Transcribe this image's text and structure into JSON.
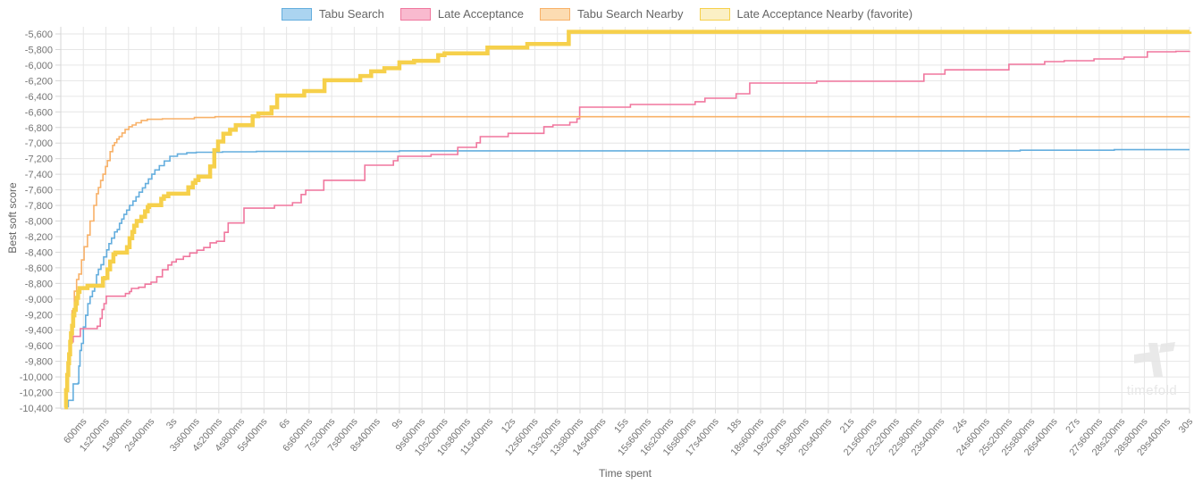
{
  "watermark": {
    "text": "timefold"
  },
  "axes": {
    "y": {
      "title": "Best soft score",
      "tick_values": [
        -5600,
        -5800,
        -6000,
        -6200,
        -6400,
        -6600,
        -6800,
        -7000,
        -7200,
        -7400,
        -7600,
        -7800,
        -8000,
        -8200,
        -8400,
        -8600,
        -8800,
        -9000,
        -9200,
        -9400,
        -9600,
        -9800,
        -10000,
        -10200,
        -10400
      ],
      "tick_labels": [
        "-5,600",
        "-5,800",
        "-6,000",
        "-6,200",
        "-6,400",
        "-6,600",
        "-6,800",
        "-7,000",
        "-7,200",
        "-7,400",
        "-7,600",
        "-7,800",
        "-8,000",
        "-8,200",
        "-8,400",
        "-8,600",
        "-8,800",
        "-9,000",
        "-9,200",
        "-9,400",
        "-9,600",
        "-9,800",
        "-10,000",
        "-10,200",
        "-10,400"
      ]
    },
    "x": {
      "title": "Time spent",
      "tick_seconds": [
        0.6,
        1.2,
        1.8,
        2.4,
        3,
        3.6,
        4.2,
        4.8,
        5.4,
        6,
        6.6,
        7.2,
        7.8,
        8.4,
        9,
        9.6,
        10.2,
        10.8,
        11.4,
        12,
        12.6,
        13.2,
        13.8,
        14.4,
        15,
        15.6,
        16.2,
        16.8,
        17.4,
        18,
        18.6,
        19.2,
        19.8,
        20.4,
        21,
        21.6,
        22.2,
        22.8,
        23.4,
        24,
        24.6,
        25.2,
        25.8,
        26.4,
        27,
        27.6,
        28.2,
        28.8,
        29.4,
        30
      ],
      "tick_labels": [
        "600ms",
        "1s200ms",
        "1s800ms",
        "2s400ms",
        "3s",
        "3s600ms",
        "4s200ms",
        "4s800ms",
        "5s400ms",
        "6s",
        "6s600ms",
        "7s200ms",
        "7s800ms",
        "8s400ms",
        "9s",
        "9s600ms",
        "10s200ms",
        "10s800ms",
        "11s400ms",
        "12s",
        "12s600ms",
        "13s200ms",
        "13s800ms",
        "14s400ms",
        "15s",
        "15s600ms",
        "16s200ms",
        "16s800ms",
        "17s400ms",
        "18s",
        "18s600ms",
        "19s200ms",
        "19s800ms",
        "20s400ms",
        "21s",
        "21s600ms",
        "22s200ms",
        "22s800ms",
        "23s400ms",
        "24s",
        "24s600ms",
        "25s200ms",
        "25s800ms",
        "26s400ms",
        "27s",
        "27s600ms",
        "28s200ms",
        "28s800ms",
        "29s400ms",
        "30s"
      ]
    }
  },
  "style": {
    "grid_color": "#e6e6e6",
    "axis_color": "#d6d6d6",
    "tick_text_color": "#757575",
    "watermark_color": "#e9e9e9"
  },
  "chart_data": {
    "type": "line",
    "subtype": "step-after",
    "title": "",
    "xlabel": "Time spent",
    "ylabel": "Best soft score",
    "x_unit": "seconds",
    "xlim": [
      0,
      30
    ],
    "ylim": [
      -10400,
      -5600
    ],
    "grid": true,
    "legend_position": "top-center",
    "series": [
      {
        "name": "Tabu Search",
        "color": "#64aede",
        "legend_fill": "#abd4f0",
        "line_width": 1.6,
        "favorite": false,
        "points": [
          [
            0.17,
            -10380
          ],
          [
            0.2,
            -10300
          ],
          [
            0.33,
            -10090
          ],
          [
            0.46,
            -10080
          ],
          [
            0.48,
            -9860
          ],
          [
            0.51,
            -9660
          ],
          [
            0.55,
            -9570
          ],
          [
            0.6,
            -9360
          ],
          [
            0.66,
            -9210
          ],
          [
            0.72,
            -9060
          ],
          [
            0.78,
            -8970
          ],
          [
            0.84,
            -8900
          ],
          [
            0.9,
            -8820
          ],
          [
            0.95,
            -8690
          ],
          [
            1.0,
            -8620
          ],
          [
            1.07,
            -8560
          ],
          [
            1.14,
            -8460
          ],
          [
            1.22,
            -8370
          ],
          [
            1.28,
            -8290
          ],
          [
            1.35,
            -8220
          ],
          [
            1.43,
            -8140
          ],
          [
            1.5,
            -8110
          ],
          [
            1.56,
            -8030
          ],
          [
            1.62,
            -7975
          ],
          [
            1.68,
            -7915
          ],
          [
            1.75,
            -7860
          ],
          [
            1.83,
            -7800
          ],
          [
            1.92,
            -7745
          ],
          [
            2.0,
            -7690
          ],
          [
            2.08,
            -7630
          ],
          [
            2.17,
            -7575
          ],
          [
            2.25,
            -7520
          ],
          [
            2.33,
            -7460
          ],
          [
            2.42,
            -7400
          ],
          [
            2.5,
            -7345
          ],
          [
            2.62,
            -7290
          ],
          [
            2.75,
            -7230
          ],
          [
            2.9,
            -7170
          ],
          [
            3.1,
            -7140
          ],
          [
            3.35,
            -7125
          ],
          [
            3.6,
            -7118
          ],
          [
            4.3,
            -7112
          ],
          [
            5.2,
            -7108
          ],
          [
            9.0,
            -7100
          ],
          [
            25.5,
            -7092
          ],
          [
            28.0,
            -7085
          ],
          [
            30,
            -7085
          ]
        ]
      },
      {
        "name": "Late Acceptance",
        "color": "#f0779e",
        "legend_fill": "#f9bacf",
        "line_width": 1.6,
        "favorite": false,
        "points": [
          [
            0.12,
            -10350
          ],
          [
            0.15,
            -10120
          ],
          [
            0.18,
            -9900
          ],
          [
            0.22,
            -9700
          ],
          [
            0.27,
            -9550
          ],
          [
            0.33,
            -9480
          ],
          [
            0.52,
            -9380
          ],
          [
            0.97,
            -9350
          ],
          [
            1.05,
            -9250
          ],
          [
            1.1,
            -9135
          ],
          [
            1.15,
            -9060
          ],
          [
            1.21,
            -8965
          ],
          [
            1.72,
            -8930
          ],
          [
            1.83,
            -8905
          ],
          [
            1.88,
            -8865
          ],
          [
            2.07,
            -8850
          ],
          [
            2.24,
            -8810
          ],
          [
            2.4,
            -8785
          ],
          [
            2.55,
            -8715
          ],
          [
            2.7,
            -8625
          ],
          [
            2.85,
            -8565
          ],
          [
            2.95,
            -8525
          ],
          [
            3.07,
            -8490
          ],
          [
            3.26,
            -8455
          ],
          [
            3.43,
            -8410
          ],
          [
            3.62,
            -8375
          ],
          [
            3.8,
            -8340
          ],
          [
            3.97,
            -8280
          ],
          [
            4.14,
            -8260
          ],
          [
            4.35,
            -8145
          ],
          [
            4.45,
            -8025
          ],
          [
            4.87,
            -7835
          ],
          [
            5.68,
            -7800
          ],
          [
            6.16,
            -7765
          ],
          [
            6.39,
            -7660
          ],
          [
            6.51,
            -7605
          ],
          [
            6.99,
            -7478
          ],
          [
            8.08,
            -7284
          ],
          [
            8.84,
            -7227
          ],
          [
            8.96,
            -7169
          ],
          [
            9.84,
            -7146
          ],
          [
            10.55,
            -7055
          ],
          [
            11.05,
            -6997
          ],
          [
            11.15,
            -6917
          ],
          [
            11.89,
            -6875
          ],
          [
            12.84,
            -6790
          ],
          [
            13.08,
            -6768
          ],
          [
            13.53,
            -6734
          ],
          [
            13.72,
            -6688
          ],
          [
            13.79,
            -6539
          ],
          [
            15.14,
            -6505
          ],
          [
            16.86,
            -6470
          ],
          [
            17.12,
            -6425
          ],
          [
            17.95,
            -6368
          ],
          [
            18.31,
            -6230
          ],
          [
            20.09,
            -6207
          ],
          [
            22.94,
            -6116
          ],
          [
            23.5,
            -6060
          ],
          [
            25.2,
            -5989
          ],
          [
            26.15,
            -5955
          ],
          [
            26.67,
            -5944
          ],
          [
            27.46,
            -5921
          ],
          [
            28.26,
            -5898
          ],
          [
            28.88,
            -5829
          ],
          [
            29.64,
            -5823
          ],
          [
            30,
            -5820
          ]
        ]
      },
      {
        "name": "Tabu Search Nearby",
        "color": "#f8b168",
        "legend_fill": "#fcdcb2",
        "line_width": 1.6,
        "favorite": false,
        "points": [
          [
            0.1,
            -10390
          ],
          [
            0.15,
            -10050
          ],
          [
            0.2,
            -9750
          ],
          [
            0.25,
            -9450
          ],
          [
            0.3,
            -9150
          ],
          [
            0.36,
            -8900
          ],
          [
            0.42,
            -8750
          ],
          [
            0.48,
            -8680
          ],
          [
            0.55,
            -8500
          ],
          [
            0.62,
            -8330
          ],
          [
            0.71,
            -8180
          ],
          [
            0.78,
            -8000
          ],
          [
            0.88,
            -7800
          ],
          [
            0.95,
            -7650
          ],
          [
            1.0,
            -7570
          ],
          [
            1.06,
            -7480
          ],
          [
            1.12,
            -7400
          ],
          [
            1.19,
            -7300
          ],
          [
            1.24,
            -7225
          ],
          [
            1.31,
            -7110
          ],
          [
            1.38,
            -7030
          ],
          [
            1.43,
            -6995
          ],
          [
            1.49,
            -6950
          ],
          [
            1.55,
            -6917
          ],
          [
            1.63,
            -6870
          ],
          [
            1.71,
            -6825
          ],
          [
            1.81,
            -6790
          ],
          [
            1.9,
            -6768
          ],
          [
            2.0,
            -6740
          ],
          [
            2.14,
            -6710
          ],
          [
            2.3,
            -6695
          ],
          [
            2.7,
            -6688
          ],
          [
            3.55,
            -6672
          ],
          [
            4.1,
            -6662
          ],
          [
            30,
            -6660
          ]
        ]
      },
      {
        "name": "Late Acceptance Nearby (favorite)",
        "color": "#f6d04b",
        "legend_fill": "#fbf0c5",
        "line_width": 4.5,
        "favorite": true,
        "points": [
          [
            0.1,
            -10390
          ],
          [
            0.14,
            -10170
          ],
          [
            0.17,
            -9975
          ],
          [
            0.2,
            -9825
          ],
          [
            0.22,
            -9710
          ],
          [
            0.25,
            -9550
          ],
          [
            0.27,
            -9440
          ],
          [
            0.3,
            -9345
          ],
          [
            0.33,
            -9210
          ],
          [
            0.36,
            -9140
          ],
          [
            0.4,
            -9060
          ],
          [
            0.43,
            -8985
          ],
          [
            0.46,
            -8910
          ],
          [
            0.5,
            -8860
          ],
          [
            0.71,
            -8830
          ],
          [
            1.12,
            -8736
          ],
          [
            1.17,
            -8730
          ],
          [
            1.24,
            -8620
          ],
          [
            1.31,
            -8520
          ],
          [
            1.4,
            -8427
          ],
          [
            1.45,
            -8405
          ],
          [
            1.76,
            -8335
          ],
          [
            1.83,
            -8220
          ],
          [
            1.9,
            -8140
          ],
          [
            1.95,
            -8060
          ],
          [
            2.02,
            -8000
          ],
          [
            2.14,
            -7945
          ],
          [
            2.24,
            -7875
          ],
          [
            2.31,
            -7820
          ],
          [
            2.35,
            -7797
          ],
          [
            2.67,
            -7715
          ],
          [
            2.74,
            -7683
          ],
          [
            2.86,
            -7650
          ],
          [
            3.39,
            -7568
          ],
          [
            3.51,
            -7510
          ],
          [
            3.58,
            -7476
          ],
          [
            3.66,
            -7430
          ],
          [
            3.97,
            -7300
          ],
          [
            4.08,
            -7090
          ],
          [
            4.18,
            -6980
          ],
          [
            4.32,
            -6880
          ],
          [
            4.5,
            -6830
          ],
          [
            4.65,
            -6770
          ],
          [
            5.1,
            -6655
          ],
          [
            5.25,
            -6620
          ],
          [
            5.6,
            -6540
          ],
          [
            5.75,
            -6390
          ],
          [
            6.47,
            -6333
          ],
          [
            7.01,
            -6195
          ],
          [
            7.96,
            -6140
          ],
          [
            8.25,
            -6080
          ],
          [
            8.6,
            -6040
          ],
          [
            9.0,
            -5965
          ],
          [
            9.39,
            -5945
          ],
          [
            10.03,
            -5872
          ],
          [
            10.2,
            -5850
          ],
          [
            11.34,
            -5775
          ],
          [
            12.4,
            -5729
          ],
          [
            13.5,
            -5572
          ],
          [
            30,
            -5570
          ]
        ]
      }
    ]
  }
}
